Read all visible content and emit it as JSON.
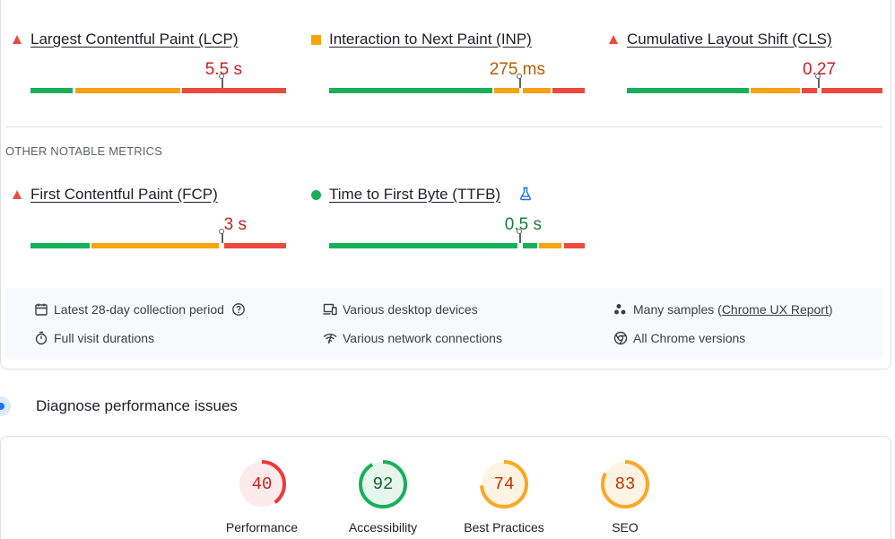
{
  "core_metrics": [
    {
      "id": "lcp",
      "title": "Largest Contentful Paint (LCP)",
      "value": "5.5 s",
      "status": "poor",
      "value_color": "#c5221f",
      "marker_position_pct": 75
    },
    {
      "id": "inp",
      "title": "Interaction to Next Paint (INP)",
      "value": "275 ms",
      "status": "needs-improvement",
      "value_color": "#b06000",
      "marker_position_pct": 74
    },
    {
      "id": "cls",
      "title": "Cumulative Layout Shift (CLS)",
      "value": "0.27",
      "status": "poor",
      "value_color": "#c5221f",
      "marker_position_pct": 75
    }
  ],
  "other_section": {
    "label": "OTHER NOTABLE METRICS",
    "metrics": [
      {
        "id": "fcp",
        "title": "First Contentful Paint (FCP)",
        "value": "3 s",
        "status": "poor",
        "value_color": "#c5221f",
        "marker_position_pct": 75
      },
      {
        "id": "ttfb",
        "title": "Time to First Byte (TTFB)",
        "value": "0.5 s",
        "status": "good",
        "value_color": "#188038",
        "marker_position_pct": 75,
        "has_flask_icon": true
      }
    ]
  },
  "info": {
    "collection_period": "Latest 28-day collection period",
    "devices": "Various desktop devices",
    "samples_prefix": "Many samples (",
    "samples_link": "Chrome UX Report",
    "samples_suffix": ")",
    "visit_durations": "Full visit durations",
    "network": "Various network connections",
    "chrome_versions": "All Chrome versions"
  },
  "diagnose": {
    "title": "Diagnose performance issues"
  },
  "scores": [
    {
      "label": "Performance",
      "score": "40",
      "fraction": 0.4,
      "color": "#eb3b3b",
      "fill": "#fdeaea",
      "text_color": "#c5221f"
    },
    {
      "label": "Accessibility",
      "score": "92",
      "fraction": 0.92,
      "color": "#17b05a",
      "fill": "#e6f6ec",
      "text_color": "#0d652d"
    },
    {
      "label": "Best Practices",
      "score": "74",
      "fraction": 0.74,
      "color": "#f9a825",
      "fill": "#fff3e3",
      "text_color": "#c33300"
    },
    {
      "label": "SEO",
      "score": "83",
      "fraction": 0.83,
      "color": "#f9a825",
      "fill": "#fff3e3",
      "text_color": "#c33300"
    }
  ],
  "colors": {
    "good": "#17b05a",
    "average": "#f7a30d",
    "poor": "#eb4a3d"
  }
}
